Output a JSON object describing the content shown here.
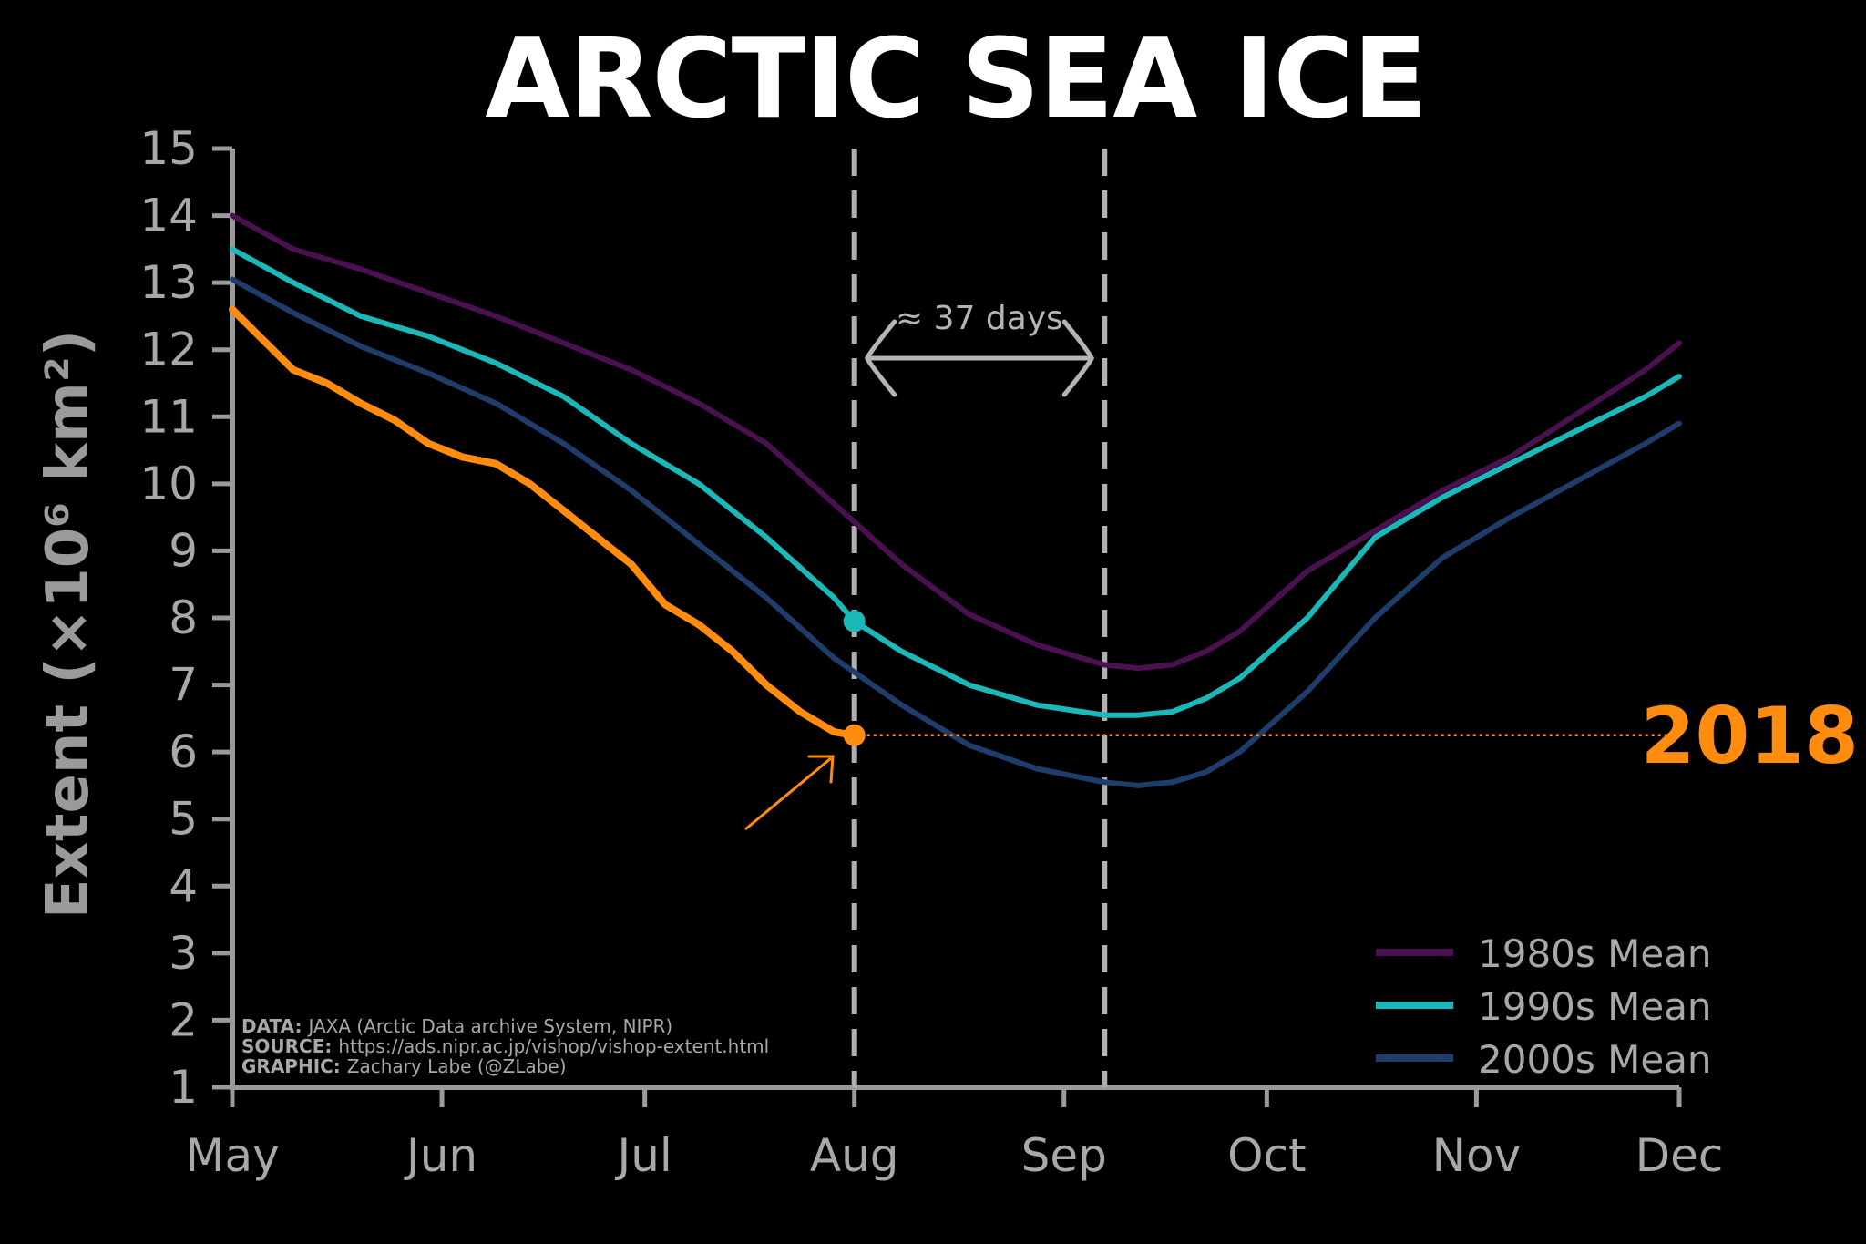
{
  "chart_data": {
    "type": "line",
    "title": "ARCTIC SEA ICE",
    "ylabel": "Extent (×10⁶ km²)",
    "xlabel": "",
    "ylim": [
      1,
      15
    ],
    "yticks": [
      1,
      2,
      3,
      4,
      5,
      6,
      7,
      8,
      9,
      10,
      11,
      12,
      13,
      14,
      15
    ],
    "x_ticks": [
      "May",
      "Jun",
      "Jul",
      "Aug",
      "Sep",
      "Oct",
      "Nov",
      "Dec"
    ],
    "x_unit": "day of year",
    "x_tick_days": [
      121,
      152,
      182,
      213,
      244,
      274,
      305,
      335
    ],
    "xlim": [
      121,
      335
    ],
    "grid": false,
    "legend_position": "bottom-right",
    "series": [
      {
        "name": "1980s Mean",
        "color": "#4a1050",
        "width": 6,
        "x": [
          121,
          130,
          140,
          150,
          160,
          170,
          180,
          190,
          200,
          210,
          220,
          230,
          240,
          250,
          255,
          260,
          265,
          270,
          280,
          290,
          300,
          310,
          320,
          330,
          335
        ],
        "y": [
          14.0,
          13.5,
          13.2,
          12.85,
          12.5,
          12.1,
          11.7,
          11.2,
          10.6,
          9.7,
          8.8,
          8.05,
          7.6,
          7.3,
          7.25,
          7.3,
          7.5,
          7.8,
          8.7,
          9.3,
          9.9,
          10.4,
          11.05,
          11.7,
          12.1
        ]
      },
      {
        "name": "1990s Mean",
        "color": "#1ab8b8",
        "width": 6,
        "x": [
          121,
          130,
          140,
          150,
          160,
          170,
          180,
          190,
          200,
          210,
          213,
          220,
          230,
          240,
          250,
          255,
          260,
          265,
          270,
          280,
          290,
          300,
          310,
          320,
          330,
          335
        ],
        "y": [
          13.5,
          13.0,
          12.5,
          12.2,
          11.8,
          11.3,
          10.6,
          10.0,
          9.2,
          8.3,
          7.95,
          7.5,
          7.0,
          6.7,
          6.55,
          6.55,
          6.6,
          6.8,
          7.1,
          8.0,
          9.2,
          9.8,
          10.3,
          10.8,
          11.3,
          11.6
        ]
      },
      {
        "name": "2000s Mean",
        "color": "#1e3d6b",
        "width": 6,
        "x": [
          121,
          130,
          140,
          150,
          160,
          170,
          180,
          190,
          200,
          210,
          220,
          230,
          240,
          250,
          255,
          260,
          265,
          270,
          280,
          290,
          300,
          310,
          320,
          330,
          335
        ],
        "y": [
          13.05,
          12.55,
          12.05,
          11.65,
          11.2,
          10.6,
          9.9,
          9.1,
          8.3,
          7.4,
          6.7,
          6.1,
          5.75,
          5.55,
          5.5,
          5.55,
          5.7,
          6.0,
          6.9,
          8.0,
          8.9,
          9.5,
          10.05,
          10.6,
          10.9
        ]
      },
      {
        "name": "2018",
        "color": "#ff8c0e",
        "width": 8,
        "x": [
          121,
          125,
          130,
          135,
          140,
          145,
          150,
          155,
          160,
          165,
          170,
          175,
          180,
          185,
          190,
          195,
          200,
          205,
          210,
          213
        ],
        "y": [
          12.6,
          12.2,
          11.7,
          11.5,
          11.2,
          10.95,
          10.6,
          10.4,
          10.3,
          10.0,
          9.6,
          9.2,
          8.8,
          8.2,
          7.9,
          7.5,
          7.0,
          6.6,
          6.3,
          6.25
        ]
      }
    ],
    "end_marker_2018": {
      "x": 213,
      "y": 6.25,
      "label": "2018",
      "color": "#ff8c0e"
    },
    "marker_1990s": {
      "x": 213,
      "y": 7.95,
      "color": "#1ab8b8"
    },
    "vlines_days": [
      213,
      250
    ],
    "annotation": "≈ 37 days",
    "credits": [
      {
        "label": "DATA:",
        "text": "JAXA (Arctic Data archive System, NIPR)"
      },
      {
        "label": "SOURCE:",
        "text": "https://ads.nipr.ac.jp/vishop/vishop-extent.html"
      },
      {
        "label": "GRAPHIC:",
        "text": "Zachary Labe (@ZLabe)"
      }
    ]
  },
  "colors": {
    "background": "#000000",
    "axis": "#9a9a9a",
    "tick_text": "#a8a8a8",
    "dash_line": "#b0b0b0",
    "annotation": "#b5b5b5",
    "accent_2018": "#ff8c0e"
  }
}
